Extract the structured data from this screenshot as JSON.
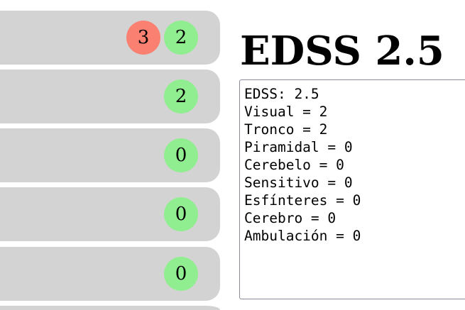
{
  "colors": {
    "card": "#d3d3d3",
    "badge_ok": "#90ee90",
    "badge_alert": "#fa8072"
  },
  "cards": [
    {
      "badges": [
        {
          "value": "3",
          "status": "alert"
        },
        {
          "value": "2",
          "status": "ok"
        }
      ]
    },
    {
      "badges": [
        {
          "value": "2",
          "status": "ok"
        }
      ]
    },
    {
      "badges": [
        {
          "value": "0",
          "status": "ok"
        }
      ]
    },
    {
      "badges": [
        {
          "value": "0",
          "status": "ok"
        }
      ]
    },
    {
      "badges": [
        {
          "value": "0",
          "status": "ok"
        }
      ]
    },
    {
      "badges": []
    }
  ],
  "title": "EDSS 2.5",
  "summary": "EDSS: 2.5\nVisual = 2\nTronco = 2\nPiramidal = 0\nCerebelo = 0\nSensitivo = 0\nEsfínteres = 0\nCerebro = 0\nAmbulación = 0"
}
